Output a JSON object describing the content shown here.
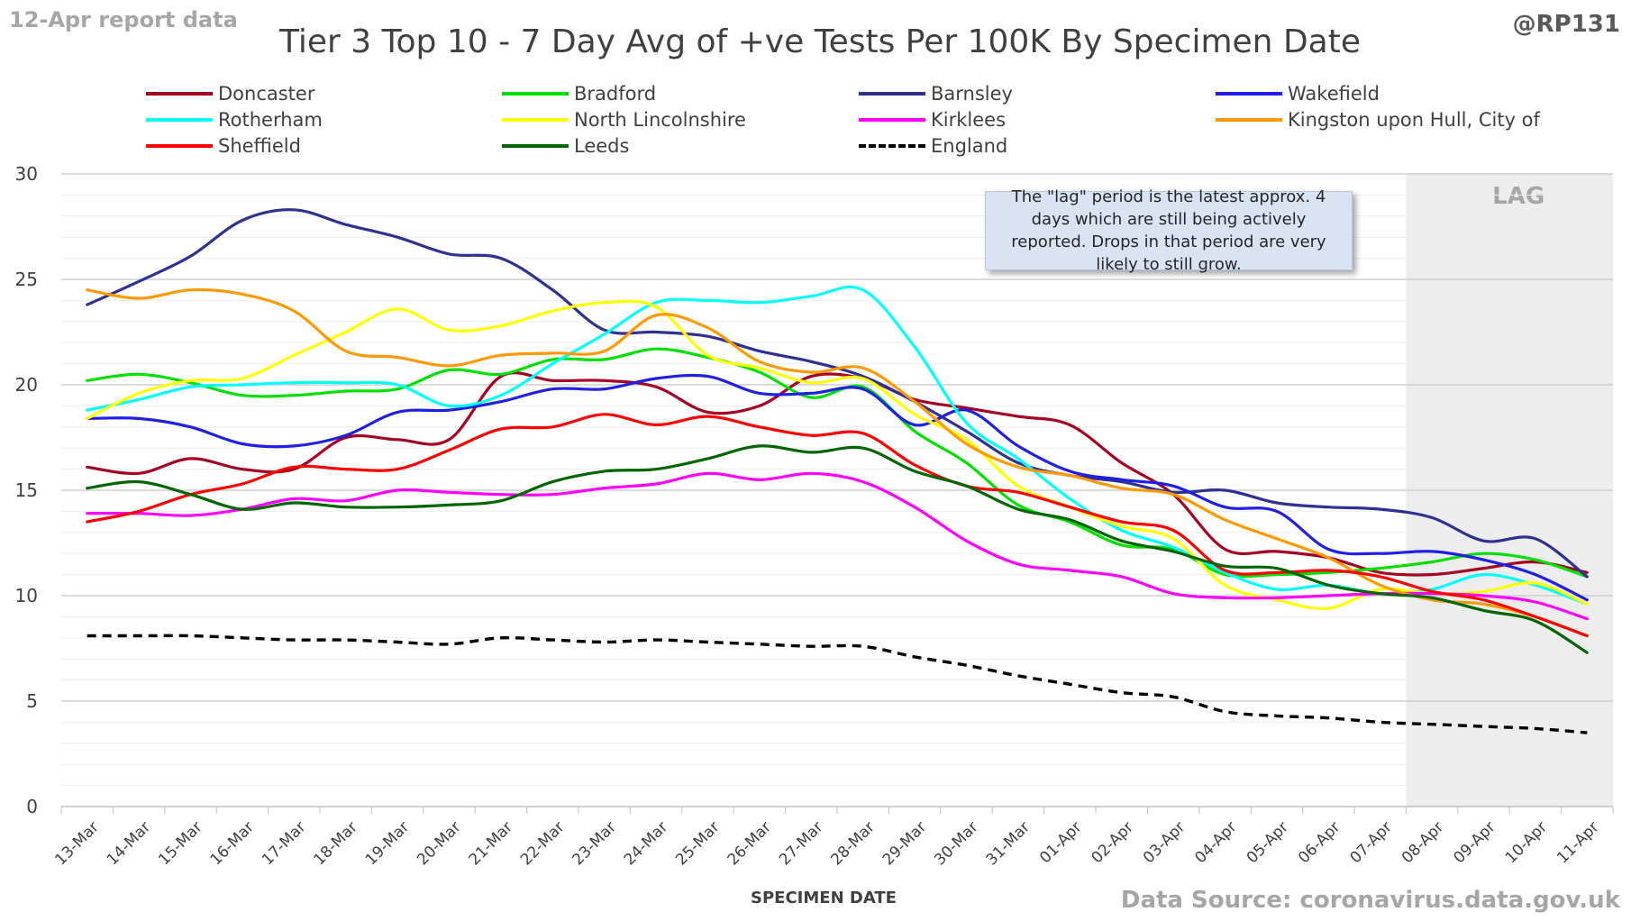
{
  "header": {
    "report_label": "12-Apr report data",
    "handle": "@RP131",
    "source": "Data Source: coronavirus.data.gov.uk"
  },
  "note": "The \"lag\" period is the latest approx. 4 days which are still being actively reported.  Drops in that period are very likely to still grow.",
  "chart_data": {
    "type": "line",
    "title": "Tier 3 Top 10 - 7 Day Avg of +ve Tests Per 100K By Specimen Date",
    "xlabel": "SPECIMEN DATE",
    "ylabel": "",
    "ylim": [
      0,
      30
    ],
    "yticks": [
      0,
      5,
      10,
      15,
      20,
      25,
      30
    ],
    "grid": true,
    "legend_position": "top",
    "lag_label": "LAG",
    "lag_start": "08-Apr",
    "lag_end": "11-Apr",
    "categories": [
      "13-Mar",
      "14-Mar",
      "15-Mar",
      "16-Mar",
      "17-Mar",
      "18-Mar",
      "19-Mar",
      "20-Mar",
      "21-Mar",
      "22-Mar",
      "23-Mar",
      "24-Mar",
      "25-Mar",
      "26-Mar",
      "27-Mar",
      "28-Mar",
      "29-Mar",
      "30-Mar",
      "31-Mar",
      "01-Apr",
      "02-Apr",
      "03-Apr",
      "04-Apr",
      "05-Apr",
      "06-Apr",
      "07-Apr",
      "08-Apr",
      "09-Apr",
      "10-Apr",
      "11-Apr"
    ],
    "series": [
      {
        "name": "Doncaster",
        "color": "#a50021",
        "dash": false,
        "values": [
          16.1,
          15.8,
          16.5,
          16.0,
          16.0,
          17.5,
          17.4,
          17.4,
          20.4,
          20.2,
          20.2,
          19.9,
          18.7,
          19.0,
          20.4,
          20.3,
          19.3,
          18.9,
          18.5,
          18.1,
          16.3,
          14.8,
          12.2,
          12.1,
          11.8,
          11.1,
          11.0,
          11.3,
          11.6,
          11.1
        ]
      },
      {
        "name": "Bradford",
        "color": "#00e000",
        "dash": false,
        "values": [
          20.2,
          20.5,
          20.1,
          19.5,
          19.5,
          19.7,
          19.8,
          20.7,
          20.5,
          21.2,
          21.2,
          21.7,
          21.3,
          20.6,
          19.4,
          19.9,
          17.8,
          16.3,
          14.3,
          13.5,
          12.4,
          12.2,
          11.0,
          11.0,
          11.1,
          11.3,
          11.6,
          12.0,
          11.7,
          10.9
        ]
      },
      {
        "name": "Barnsley",
        "color": "#2e3193",
        "dash": false,
        "values": [
          23.8,
          24.9,
          26.1,
          27.8,
          28.3,
          27.6,
          27.0,
          26.2,
          26.0,
          24.5,
          22.6,
          22.5,
          22.3,
          21.6,
          21.1,
          20.4,
          19.2,
          17.8,
          16.3,
          15.7,
          15.4,
          14.9,
          15.0,
          14.4,
          14.2,
          14.1,
          13.7,
          12.6,
          12.7,
          10.9
        ]
      },
      {
        "name": "Wakefield",
        "color": "#1f1fe6",
        "dash": false,
        "values": [
          18.4,
          18.4,
          18.0,
          17.2,
          17.1,
          17.6,
          18.7,
          18.8,
          19.2,
          19.8,
          19.8,
          20.3,
          20.4,
          19.6,
          19.6,
          19.8,
          18.1,
          18.8,
          17.1,
          15.9,
          15.5,
          15.2,
          14.2,
          14.0,
          12.2,
          12.0,
          12.1,
          11.7,
          11.0,
          9.8
        ]
      },
      {
        "name": "Rotherham",
        "color": "#00ffff",
        "dash": false,
        "values": [
          18.8,
          19.3,
          19.9,
          20.0,
          20.1,
          20.1,
          20.0,
          19.0,
          19.5,
          21.0,
          22.4,
          23.9,
          24.0,
          23.9,
          24.2,
          24.5,
          21.8,
          18.2,
          16.5,
          14.6,
          13.1,
          12.3,
          11.1,
          10.3,
          10.5,
          10.1,
          10.3,
          11.0,
          10.5,
          9.6
        ]
      },
      {
        "name": "North Lincolnshire",
        "color": "#ffff00",
        "dash": false,
        "values": [
          18.4,
          19.6,
          20.2,
          20.3,
          21.4,
          22.5,
          23.6,
          22.6,
          22.8,
          23.5,
          23.9,
          23.7,
          21.4,
          20.8,
          20.1,
          20.3,
          18.6,
          17.4,
          15.2,
          14.2,
          13.3,
          12.7,
          10.5,
          9.8,
          9.4,
          10.3,
          10.1,
          10.2,
          10.6,
          9.6
        ]
      },
      {
        "name": "Kirklees",
        "color": "#ff00ff",
        "dash": false,
        "values": [
          13.9,
          13.9,
          13.8,
          14.1,
          14.6,
          14.5,
          15.0,
          14.9,
          14.8,
          14.8,
          15.1,
          15.3,
          15.8,
          15.5,
          15.8,
          15.4,
          14.2,
          12.6,
          11.5,
          11.2,
          10.9,
          10.1,
          9.9,
          9.9,
          10.0,
          10.1,
          10.1,
          10.0,
          9.7,
          8.9
        ]
      },
      {
        "name": "Kingston upon Hull, City of",
        "color": "#ff9900",
        "dash": false,
        "values": [
          24.5,
          24.1,
          24.5,
          24.3,
          23.5,
          21.6,
          21.3,
          20.9,
          21.4,
          21.5,
          21.6,
          23.3,
          22.7,
          21.1,
          20.6,
          20.8,
          19.2,
          17.2,
          16.1,
          15.7,
          15.1,
          14.8,
          13.6,
          12.7,
          11.8,
          10.5,
          9.8,
          9.6,
          9.0,
          8.1
        ]
      },
      {
        "name": "Sheffield",
        "color": "#ff0000",
        "dash": false,
        "values": [
          13.5,
          14.0,
          14.8,
          15.3,
          16.1,
          16.0,
          16.0,
          16.9,
          17.9,
          18.0,
          18.6,
          18.1,
          18.5,
          18.0,
          17.6,
          17.7,
          16.2,
          15.2,
          14.9,
          14.2,
          13.5,
          13.1,
          11.2,
          11.1,
          11.2,
          10.9,
          10.2,
          9.8,
          9.0,
          8.1
        ]
      },
      {
        "name": "Leeds",
        "color": "#006600",
        "dash": false,
        "values": [
          15.1,
          15.4,
          14.8,
          14.1,
          14.4,
          14.2,
          14.2,
          14.3,
          14.5,
          15.4,
          15.9,
          16.0,
          16.5,
          17.1,
          16.8,
          17.0,
          15.9,
          15.2,
          14.1,
          13.6,
          12.6,
          12.1,
          11.4,
          11.3,
          10.5,
          10.1,
          9.9,
          9.3,
          8.8,
          7.3
        ]
      },
      {
        "name": "England",
        "color": "#000000",
        "dash": true,
        "values": [
          8.1,
          8.1,
          8.1,
          8.0,
          7.9,
          7.9,
          7.8,
          7.7,
          8.0,
          7.9,
          7.8,
          7.9,
          7.8,
          7.7,
          7.6,
          7.6,
          7.1,
          6.7,
          6.2,
          5.8,
          5.4,
          5.2,
          4.5,
          4.3,
          4.2,
          4.0,
          3.9,
          3.8,
          3.7,
          3.5
        ]
      }
    ]
  }
}
